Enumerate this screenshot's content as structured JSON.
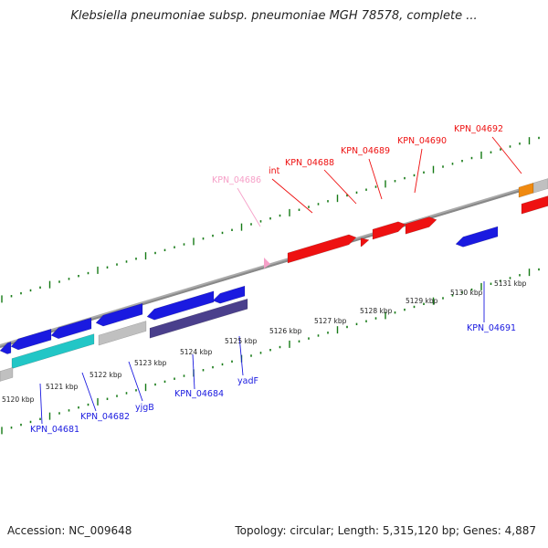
{
  "title": "Klebsiella pneumoniae subsp. pneumoniae MGH 78578, complete ...",
  "accession": "Accession: NC_009648",
  "topology": "Topology: circular; Length: 5,315,120 bp; Genes: 4,887",
  "colors": {
    "forward": "#ee1111",
    "reverse": "#1a1ae0",
    "pseudo": "#f6a0c8",
    "backbone": "#888888",
    "tick": "#157a15",
    "cyan": "#22c6c6",
    "purple": "#4a3f8c",
    "grey": "#c0c0c0",
    "orange": "#f08a10"
  },
  "kbp_labels": [
    "5120 kbp",
    "5121 kbp",
    "5122 kbp",
    "5123 kbp",
    "5124 kbp",
    "5125 kbp",
    "5126 kbp",
    "5127 kbp",
    "5128 kbp",
    "5129 kbp",
    "5130 kbp",
    "5131 kbp"
  ],
  "gene_labels": [
    {
      "text": "KPN_04686",
      "color": "#f6a0c8"
    },
    {
      "text": "int",
      "color": "#ee1111"
    },
    {
      "text": "KPN_04688",
      "color": "#ee1111"
    },
    {
      "text": "KPN_04689",
      "color": "#ee1111"
    },
    {
      "text": "KPN_04690",
      "color": "#ee1111"
    },
    {
      "text": "KPN_04692",
      "color": "#ee1111"
    },
    {
      "text": "KPN_04691",
      "color": "#1a1ae0"
    },
    {
      "text": "KPN_04681",
      "color": "#1a1ae0"
    },
    {
      "text": "KPN_04682",
      "color": "#1a1ae0"
    },
    {
      "text": "yjgB",
      "color": "#1a1ae0"
    },
    {
      "text": "KPN_04684",
      "color": "#1a1ae0"
    },
    {
      "text": "yadF",
      "color": "#1a1ae0"
    }
  ]
}
